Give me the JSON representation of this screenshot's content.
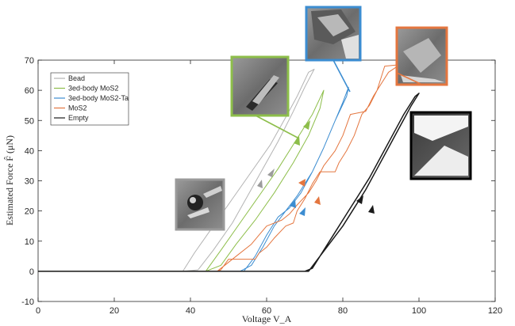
{
  "chart_data": {
    "type": "line",
    "title": "",
    "xlabel": "Voltage V_A",
    "ylabel": "Estimated Force F̂ (μN)",
    "xlim": [
      0,
      120
    ],
    "ylim": [
      -10,
      70
    ],
    "x_ticks": [
      0,
      20,
      40,
      60,
      80,
      100,
      120
    ],
    "y_ticks": [
      -10,
      0,
      10,
      20,
      30,
      40,
      50,
      60,
      70
    ],
    "grid": false,
    "legend_position": "top-left",
    "series": [
      {
        "name": "Bead",
        "color": "#b3b3b3",
        "points": [
          [
            0,
            0
          ],
          [
            38,
            0
          ],
          [
            41,
            6
          ],
          [
            46,
            15
          ],
          [
            51,
            24
          ],
          [
            56,
            33
          ],
          [
            61,
            42
          ],
          [
            65,
            51
          ],
          [
            68,
            58
          ],
          [
            71,
            66
          ],
          [
            72.5,
            67
          ],
          [
            70,
            61
          ],
          [
            67,
            53
          ],
          [
            63,
            43
          ],
          [
            59,
            34
          ],
          [
            55,
            25
          ],
          [
            51,
            16
          ],
          [
            46,
            7
          ],
          [
            42,
            0.5
          ],
          [
            38,
            0
          ]
        ]
      },
      {
        "name": "3ed-body MoS2",
        "color": "#8dbe4a",
        "points": [
          [
            0,
            0
          ],
          [
            44,
            0
          ],
          [
            48,
            7
          ],
          [
            53,
            16
          ],
          [
            58,
            25
          ],
          [
            63,
            34
          ],
          [
            68,
            44
          ],
          [
            72,
            52
          ],
          [
            75,
            60
          ],
          [
            74,
            54
          ],
          [
            71,
            45
          ],
          [
            67,
            36
          ],
          [
            62,
            26
          ],
          [
            57,
            17
          ],
          [
            52,
            9
          ],
          [
            48,
            2
          ],
          [
            44,
            0
          ]
        ]
      },
      {
        "name": "3ed-body MoS2-Ta",
        "color": "#3c8dd1",
        "points": [
          [
            0,
            0
          ],
          [
            51,
            0
          ],
          [
            54,
            0
          ],
          [
            57,
            5
          ],
          [
            60,
            12
          ],
          [
            63,
            18
          ],
          [
            66,
            21
          ],
          [
            69,
            26
          ],
          [
            72,
            33
          ],
          [
            75,
            41
          ],
          [
            78,
            50
          ],
          [
            80,
            56
          ],
          [
            81.5,
            61
          ],
          [
            81,
            58
          ],
          [
            78,
            50
          ],
          [
            75,
            41
          ],
          [
            72,
            33
          ],
          [
            68,
            25
          ],
          [
            65,
            20
          ],
          [
            62,
            15
          ],
          [
            59,
            8
          ],
          [
            56,
            2
          ],
          [
            53,
            0
          ],
          [
            51,
            0
          ]
        ]
      },
      {
        "name": "MoS2",
        "color": "#e4763f",
        "points": [
          [
            0,
            0
          ],
          [
            47,
            0
          ],
          [
            48,
            0.5
          ],
          [
            50,
            4
          ],
          [
            57,
            4
          ],
          [
            58,
            6
          ],
          [
            60,
            8
          ],
          [
            62,
            11
          ],
          [
            65,
            15
          ],
          [
            67,
            16
          ],
          [
            68,
            20
          ],
          [
            70,
            24
          ],
          [
            72,
            29
          ],
          [
            74,
            33
          ],
          [
            78,
            33
          ],
          [
            79,
            36
          ],
          [
            81,
            40
          ],
          [
            83,
            45
          ],
          [
            85,
            52
          ],
          [
            87,
            55
          ],
          [
            89,
            60
          ],
          [
            91,
            68
          ],
          [
            95,
            68.5
          ],
          [
            92,
            66
          ],
          [
            90,
            62
          ],
          [
            88,
            58
          ],
          [
            86,
            53
          ],
          [
            82,
            52
          ],
          [
            80,
            45
          ],
          [
            78,
            40
          ],
          [
            75,
            35
          ],
          [
            73,
            30
          ],
          [
            71,
            26
          ],
          [
            68,
            22
          ],
          [
            66,
            19
          ],
          [
            64,
            17
          ],
          [
            60,
            15
          ],
          [
            58,
            12
          ],
          [
            56,
            9
          ],
          [
            52,
            5
          ],
          [
            49,
            2
          ],
          [
            47,
            0
          ]
        ]
      },
      {
        "name": "Empty",
        "color": "#1a1a1a",
        "points": [
          [
            0,
            0
          ],
          [
            45,
            0
          ],
          [
            71,
            0
          ],
          [
            74,
            5
          ],
          [
            77,
            10
          ],
          [
            80,
            15
          ],
          [
            83,
            21
          ],
          [
            86,
            27
          ],
          [
            89,
            34
          ],
          [
            92,
            41
          ],
          [
            95,
            48
          ],
          [
            98,
            55
          ],
          [
            100,
            59
          ],
          [
            99,
            58
          ],
          [
            96,
            52
          ],
          [
            93,
            45
          ],
          [
            90,
            38
          ],
          [
            87,
            31
          ],
          [
            84,
            25
          ],
          [
            81,
            19
          ],
          [
            78,
            13
          ],
          [
            75,
            7
          ],
          [
            72,
            1
          ],
          [
            70,
            0
          ]
        ]
      }
    ]
  }
}
